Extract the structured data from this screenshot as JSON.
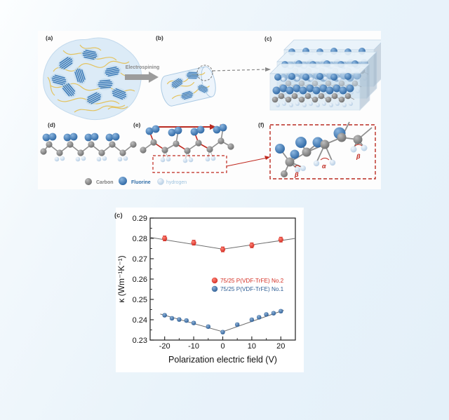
{
  "figure": {
    "panel_labels": {
      "a": "(a)",
      "b": "(b)",
      "c": "(c)",
      "d": "(d)",
      "e": "(e)",
      "f": "(f)"
    },
    "process_arrow_label": "Electrospining",
    "efield_label": "E",
    "angle_labels": {
      "alpha": "α",
      "beta_left": "β",
      "beta_right": "β"
    },
    "atom_legend": [
      {
        "label": "Carbon",
        "color": "#7d7d7d"
      },
      {
        "label": "Fluorine",
        "color": "#2f6da8"
      },
      {
        "label": "hydrogen",
        "color": "#9fc4e0"
      }
    ]
  },
  "chart": {
    "panel_label": "(c)"
  },
  "chart_data": {
    "type": "scatter",
    "title": "",
    "xlabel": "Polarization electric field (V)",
    "ylabel": "κ (Wm⁻¹K⁻¹)",
    "xlim": [
      -25,
      25
    ],
    "ylim": [
      0.23,
      0.29
    ],
    "xticks": [
      -20,
      -10,
      0,
      10,
      20
    ],
    "yticks": [
      0.23,
      0.24,
      0.25,
      0.26,
      0.27,
      0.28,
      0.29
    ],
    "x_minor_step": 5,
    "y_minor_step": 0.005,
    "grid": false,
    "legend_position": "center-right",
    "series": [
      {
        "name": "75/25 P(VDF-TrFE) No.2",
        "color": "#d42f24",
        "color_light": "#ff8377",
        "marker_radius": 3.4,
        "x": [
          -20,
          -10,
          0,
          10,
          20
        ],
        "y": [
          0.28,
          0.2779,
          0.2746,
          0.2766,
          0.2794
        ],
        "yerr": 0.0012,
        "fit_line": [
          [
            -25,
            0.2805
          ],
          [
            0,
            0.2747
          ],
          [
            25,
            0.28
          ]
        ]
      },
      {
        "name": "75/25 P(VDF-TrFE) No.1",
        "color": "#2e5e95",
        "color_light": "#8fb4da",
        "marker_radius": 3.0,
        "x": [
          -20,
          -17.5,
          -15,
          -12.5,
          -10,
          -5,
          0,
          5,
          10,
          12.5,
          15,
          17.5,
          20
        ],
        "y": [
          0.2422,
          0.2407,
          0.2401,
          0.2396,
          0.2384,
          0.2366,
          0.2339,
          0.2376,
          0.24,
          0.2412,
          0.2426,
          0.2432,
          0.2442
        ],
        "yerr": 0.0007,
        "fit_line": [
          [
            -21.5,
            0.2428
          ],
          [
            0,
            0.2341
          ],
          [
            21,
            0.2447
          ]
        ]
      }
    ]
  }
}
